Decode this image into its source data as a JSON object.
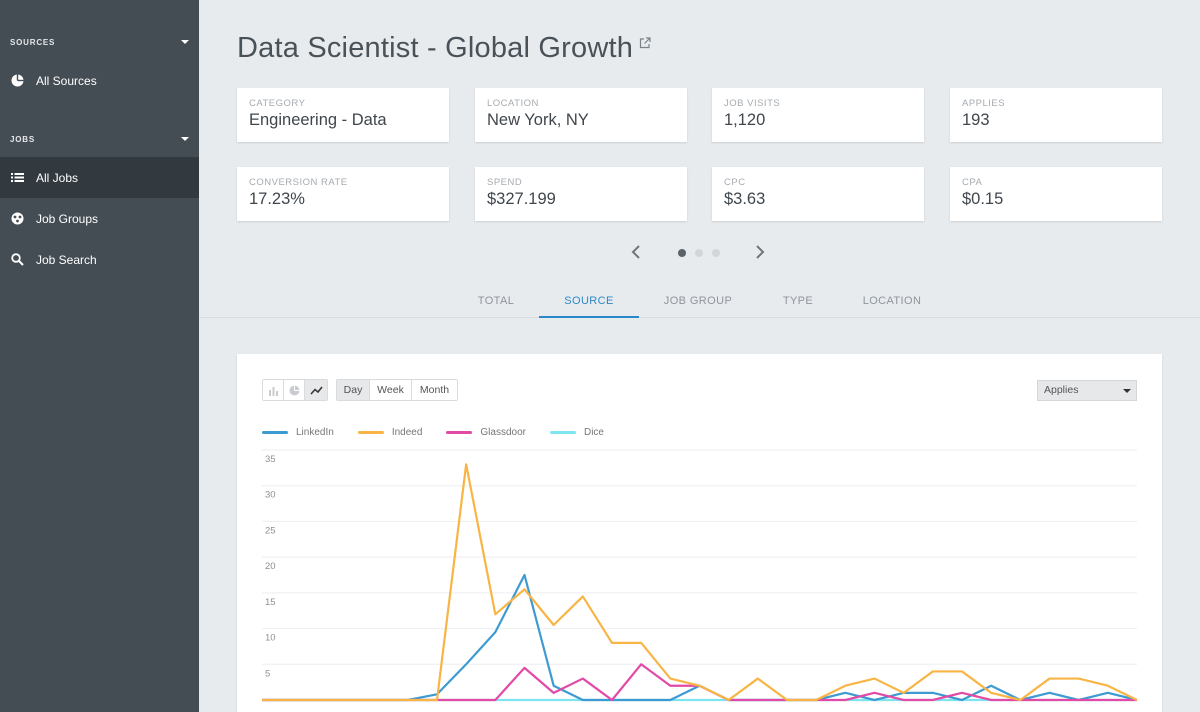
{
  "sidebar": {
    "sources_label": "SOURCES",
    "jobs_label": "JOBS",
    "items": [
      {
        "label": "All Sources",
        "icon": "pie-chart-icon"
      },
      {
        "label": "All Jobs",
        "icon": "list-icon"
      },
      {
        "label": "Job Groups",
        "icon": "group-icon"
      },
      {
        "label": "Job Search",
        "icon": "search-icon"
      }
    ],
    "active": "All Jobs"
  },
  "header": {
    "title": "Data Scientist - Global Growth",
    "link_icon": "external-link-icon"
  },
  "stats": [
    {
      "label": "CATEGORY",
      "value": "Engineering - Data"
    },
    {
      "label": "LOCATION",
      "value": "New York, NY"
    },
    {
      "label": "JOB VISITS",
      "value": "1,120"
    },
    {
      "label": "APPLIES",
      "value": "193"
    },
    {
      "label": "CONVERSION RATE",
      "value": "17.23%"
    },
    {
      "label": "SPEND",
      "value": "$327.199"
    },
    {
      "label": "CPC",
      "value": "$3.63"
    },
    {
      "label": "CPA",
      "value": "$0.15"
    }
  ],
  "pager": {
    "pages": 3,
    "current": 1
  },
  "tabs": [
    "TOTAL",
    "SOURCE",
    "JOB GROUP",
    "TYPE",
    "LOCATION"
  ],
  "active_tab": "SOURCE",
  "chart_controls": {
    "types": [
      "bar-chart-icon",
      "pie-chart-icon",
      "line-chart-icon"
    ],
    "active_type": "line-chart-icon",
    "periods": [
      "Day",
      "Week",
      "Month"
    ],
    "active_period": "Day",
    "metric": "Applies"
  },
  "colors": {
    "LinkedIn": "#3e9bd1",
    "Indeed": "#f8b545",
    "Glassdoor": "#e24aa7",
    "Dice": "#7ee4f0",
    "accent": "#2a88c8"
  },
  "chart_data": {
    "type": "line",
    "ylim": [
      0,
      35
    ],
    "yticks": [
      5,
      10,
      15,
      20,
      25,
      30,
      35
    ],
    "grid": true,
    "legend": "top-left",
    "x": [
      1,
      2,
      3,
      4,
      5,
      6,
      7,
      8,
      9,
      10,
      11,
      12,
      13,
      14,
      15,
      16,
      17,
      18,
      19,
      20,
      21,
      22,
      23,
      24,
      25,
      26,
      27,
      28,
      29,
      30,
      31
    ],
    "series": [
      {
        "name": "LinkedIn",
        "values": [
          0,
          0,
          0,
          0,
          0,
          0,
          0.8,
          5,
          9.5,
          17.5,
          2,
          0,
          0,
          0,
          0,
          2,
          0,
          0,
          0,
          0,
          1,
          0,
          1,
          1,
          0,
          2,
          0,
          1,
          0,
          1,
          0
        ]
      },
      {
        "name": "Indeed",
        "values": [
          0,
          0,
          0,
          0,
          0,
          0,
          0,
          33,
          12,
          15.5,
          10.5,
          14.5,
          8,
          8,
          3,
          2,
          0,
          3,
          0,
          0,
          2,
          3,
          1,
          4,
          4,
          1,
          0,
          3,
          3,
          2,
          0
        ]
      },
      {
        "name": "Glassdoor",
        "values": [
          0,
          0,
          0,
          0,
          0,
          0,
          0,
          0,
          0,
          4.5,
          1,
          3,
          0,
          5,
          2,
          2,
          0,
          0,
          0,
          0,
          0,
          1,
          0,
          0,
          1,
          0,
          0,
          0,
          0,
          0,
          0
        ]
      },
      {
        "name": "Dice",
        "values": [
          0,
          0,
          0,
          0,
          0,
          0,
          0,
          0,
          0,
          0,
          0,
          0,
          0,
          0,
          0,
          0,
          0,
          0,
          0,
          0,
          0,
          0,
          0,
          0,
          0,
          0,
          0,
          0,
          0,
          0,
          0
        ]
      }
    ]
  }
}
